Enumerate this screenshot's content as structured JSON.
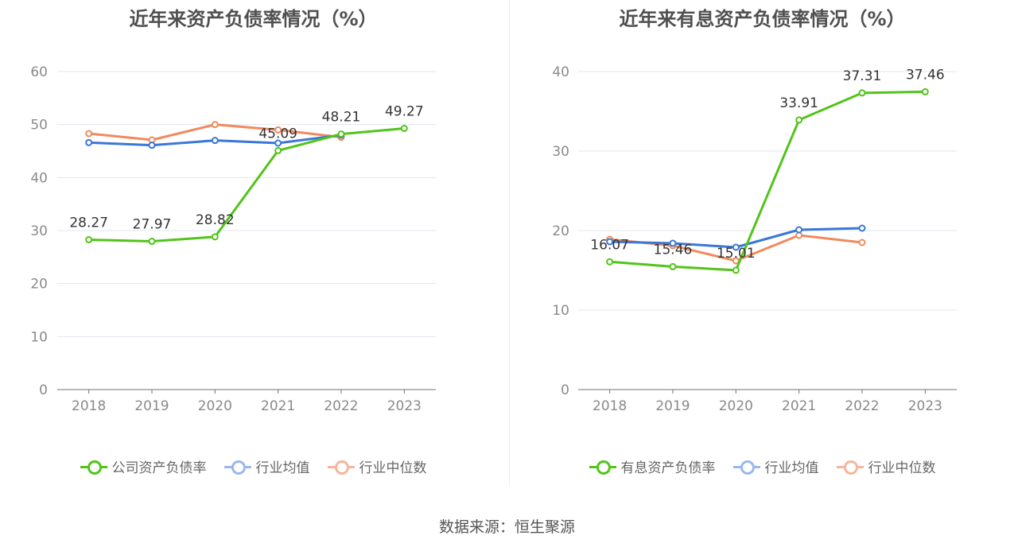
{
  "source_text": "数据来源：恒生聚源",
  "charts": [
    {
      "title": "近年来资产负债率情况（%）",
      "legend": [
        {
          "label": "公司资产负债率",
          "color": "#5cc12e"
        },
        {
          "label": "行业均值",
          "color": "#9ab8ee"
        },
        {
          "label": "行业中位数",
          "color": "#f7b59b"
        }
      ]
    },
    {
      "title": "近年来有息资产负债率情况（%）",
      "legend": [
        {
          "label": "有息资产负债率",
          "color": "#5cc12e"
        },
        {
          "label": "行业均值",
          "color": "#9ab8ee"
        },
        {
          "label": "行业中位数",
          "color": "#f7b59b"
        }
      ]
    }
  ],
  "chart_data": [
    {
      "type": "line",
      "title": "近年来资产负债率情况（%）",
      "categories": [
        "2018",
        "2019",
        "2020",
        "2021",
        "2022",
        "2023"
      ],
      "ylim": [
        0,
        60
      ],
      "yticks": [
        0,
        10,
        20,
        30,
        40,
        50,
        60
      ],
      "grid": true,
      "legend_position": "bottom",
      "series": [
        {
          "name": "公司资产负债率",
          "color": "#52c41a",
          "values": [
            28.27,
            27.97,
            28.82,
            45.09,
            48.21,
            49.27
          ],
          "labels": [
            "28.27",
            "27.97",
            "28.82",
            "45.09",
            "48.21",
            "49.27"
          ]
        },
        {
          "name": "行业均值",
          "color": "#3a77d8",
          "values": [
            46.6,
            46.1,
            47.0,
            46.5,
            48.0,
            null
          ]
        },
        {
          "name": "行业中位数",
          "color": "#f08a5d",
          "values": [
            48.3,
            47.1,
            50.0,
            49.0,
            47.6,
            null
          ]
        }
      ]
    },
    {
      "type": "line",
      "title": "近年来有息资产负债率情况（%）",
      "categories": [
        "2018",
        "2019",
        "2020",
        "2021",
        "2022",
        "2023"
      ],
      "ylim": [
        0,
        40
      ],
      "yticks": [
        0,
        10,
        20,
        30,
        40
      ],
      "grid": true,
      "legend_position": "bottom",
      "series": [
        {
          "name": "有息资产负债率",
          "color": "#52c41a",
          "values": [
            16.07,
            15.46,
            15.01,
            33.91,
            37.31,
            37.46
          ],
          "labels": [
            "16.07",
            "15.46",
            "15.01",
            "33.91",
            "37.31",
            "37.46"
          ]
        },
        {
          "name": "行业均值",
          "color": "#3a77d8",
          "values": [
            18.6,
            18.4,
            17.9,
            20.1,
            20.3,
            null
          ]
        },
        {
          "name": "行业中位数",
          "color": "#f08a5d",
          "values": [
            18.9,
            18.1,
            16.2,
            19.4,
            18.5,
            null
          ]
        }
      ]
    }
  ]
}
